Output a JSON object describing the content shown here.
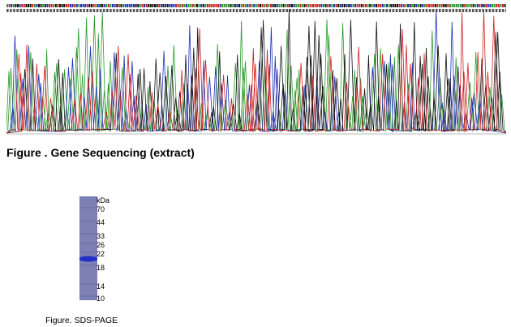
{
  "chromatogram": {
    "base_colors": {
      "A": "#2a9a2a",
      "C": "#1d2fb3",
      "G": "#111111",
      "T": "#d11f1f"
    }
  },
  "sequencing_caption": "Figure . Gene Sequencing (extract)",
  "gel": {
    "lane_color": "#7d80b4",
    "band_color": "#2230c8",
    "unit": "kDa",
    "markers": [
      "70",
      "44",
      "33",
      "26",
      "22",
      "18",
      "14",
      "10"
    ]
  },
  "sds_caption": "Figure. SDS-PAGE"
}
